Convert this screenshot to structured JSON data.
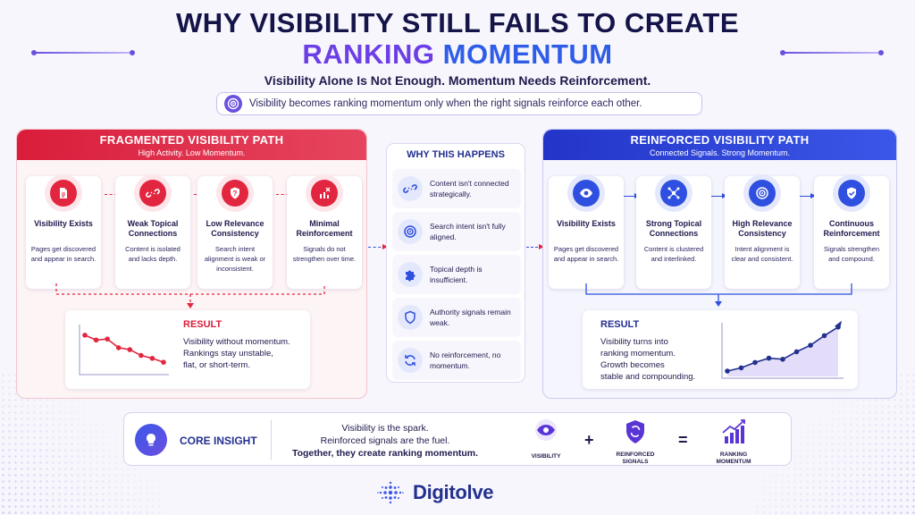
{
  "header": {
    "title_line1": "WHY VISIBILITY STILL FAILS TO CREATE",
    "title_line2_a": "RANKING",
    "title_line2_b": "MOMENTUM",
    "subtitle": "Visibility Alone Is Not Enough. Momentum Needs Reinforcement.",
    "callout": "Visibility becomes ranking momentum only when the right signals reinforce each other."
  },
  "fragmented": {
    "title": "FRAGMENTED VISIBILITY PATH",
    "subtitle": "High Activity. Low Momentum.",
    "steps": [
      {
        "title": "Visibility Exists",
        "desc": "Pages get discovered and appear in search.",
        "icon": "document-icon"
      },
      {
        "title": "Weak Topical Connections",
        "desc": "Content is isolated and lacks depth.",
        "icon": "broken-link-icon"
      },
      {
        "title": "Low Relevance Consistency",
        "desc": "Search intent alignment is weak or inconsistent.",
        "icon": "question-shield-icon"
      },
      {
        "title": "Minimal Reinforcement",
        "desc": "Signals do not strengthen over time.",
        "icon": "chart-x-icon"
      }
    ],
    "result_title": "RESULT",
    "result_lines": [
      "Visibility without momentum.",
      "Rankings stay unstable,",
      "flat, or short-term."
    ],
    "trend": [
      0.78,
      0.68,
      0.7,
      0.52,
      0.48,
      0.36,
      0.3,
      0.22
    ]
  },
  "why": {
    "title": "WHY THIS HAPPENS",
    "items": [
      {
        "text": "Content isn't connected strategically.",
        "icon": "broken-link-icon"
      },
      {
        "text": "Search intent isn't fully aligned.",
        "icon": "target-icon"
      },
      {
        "text": "Topical depth is insufficient.",
        "icon": "puzzle-icon"
      },
      {
        "text": "Authority signals remain weak.",
        "icon": "shield-icon"
      },
      {
        "text": "No reinforcement, no momentum.",
        "icon": "refresh-icon"
      }
    ]
  },
  "reinforced": {
    "title": "REINFORCED VISIBILITY PATH",
    "subtitle": "Connected Signals. Strong Momentum.",
    "steps": [
      {
        "title": "Visibility Exists",
        "desc": "Pages get discovered and appear in search.",
        "icon": "eye-icon"
      },
      {
        "title": "Strong Topical Connections",
        "desc": "Content is clustered and interlinked.",
        "icon": "network-icon"
      },
      {
        "title": "High Relevance Consistency",
        "desc": "Intent alignment is clear and consistent.",
        "icon": "target-icon"
      },
      {
        "title": "Continuous Reinforcement",
        "desc": "Signals strengthen and compound.",
        "icon": "check-shield-icon"
      }
    ],
    "result_title": "RESULT",
    "result_lines": [
      "Visibility turns into",
      "ranking momentum.",
      "Growth becomes",
      "stable and compounding."
    ],
    "trend": [
      0.1,
      0.16,
      0.26,
      0.34,
      0.32,
      0.46,
      0.58,
      0.76,
      0.92
    ]
  },
  "insight": {
    "label": "CORE INSIGHT",
    "line1": "Visibility is the spark.",
    "line2": "Reinforced signals are the fuel.",
    "line3": "Together, they create ranking momentum.",
    "eq1": "VISIBILITY",
    "plus": "+",
    "eq2a": "REINFORCED",
    "eq2b": "SIGNALS",
    "equals": "=",
    "eq3a": "RANKING",
    "eq3b": "MOMENTUM"
  },
  "brand": {
    "name": "Digitolve"
  },
  "colors": {
    "red": "#e2263f",
    "blue": "#2f4fe0",
    "purple": "#6b4fe0",
    "navy": "#141449"
  }
}
